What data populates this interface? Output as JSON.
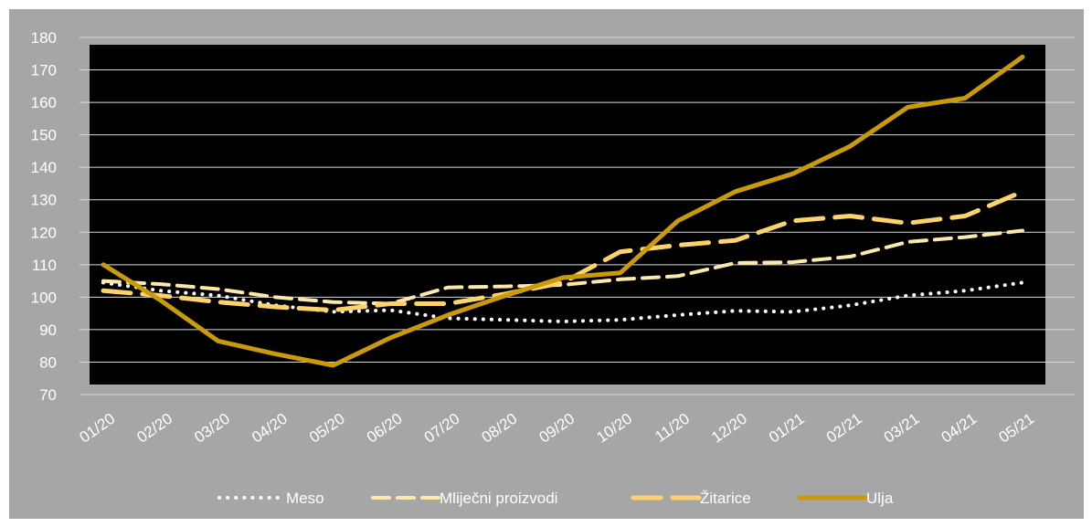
{
  "chart_data": {
    "type": "line",
    "title": "",
    "xlabel": "",
    "ylabel": "",
    "ylim": [
      70,
      180
    ],
    "y_ticks": [
      70,
      80,
      90,
      100,
      110,
      120,
      130,
      140,
      150,
      160,
      170,
      180
    ],
    "grid": true,
    "legend_position": "bottom",
    "plot_background": "#000000",
    "frame_background": "#a6a6a6",
    "categories": [
      "01/20",
      "02/20",
      "03/20",
      "04/20",
      "05/20",
      "06/20",
      "07/20",
      "08/20",
      "09/20",
      "10/20",
      "11/20",
      "12/20",
      "01/21",
      "02/21",
      "03/21",
      "04/21",
      "05/21"
    ],
    "series": [
      {
        "name": "Meso",
        "style": "dotted",
        "color": "#ffffff",
        "values": [
          104.5,
          102.0,
          100.5,
          97.5,
          95.5,
          96.0,
          93.5,
          93.0,
          92.5,
          93.0,
          94.5,
          95.8,
          95.5,
          97.5,
          100.5,
          102.0,
          104.5
        ]
      },
      {
        "name": "Mliječni proizvodi",
        "style": "dashed",
        "color": "#fde9a9",
        "values": [
          105.0,
          104.0,
          102.5,
          100.0,
          98.5,
          98.0,
          103.0,
          103.3,
          103.8,
          105.5,
          106.5,
          110.5,
          110.8,
          112.5,
          117.0,
          118.5,
          120.5
        ]
      },
      {
        "name": "Žitarice",
        "style": "long-dashed",
        "color": "#fdd46b",
        "values": [
          102.0,
          100.5,
          98.5,
          97.0,
          96.0,
          98.0,
          98.0,
          101.0,
          104.5,
          114.0,
          116.0,
          117.5,
          123.5,
          125.0,
          122.8,
          125.0,
          132.5
        ]
      },
      {
        "name": "Ulja",
        "style": "solid",
        "color": "#c99b0a",
        "values": [
          110.0,
          99.0,
          86.5,
          82.5,
          79.0,
          87.5,
          94.5,
          100.5,
          106.0,
          107.5,
          123.5,
          132.5,
          138.0,
          146.5,
          158.5,
          161.3,
          174.0
        ]
      }
    ]
  }
}
